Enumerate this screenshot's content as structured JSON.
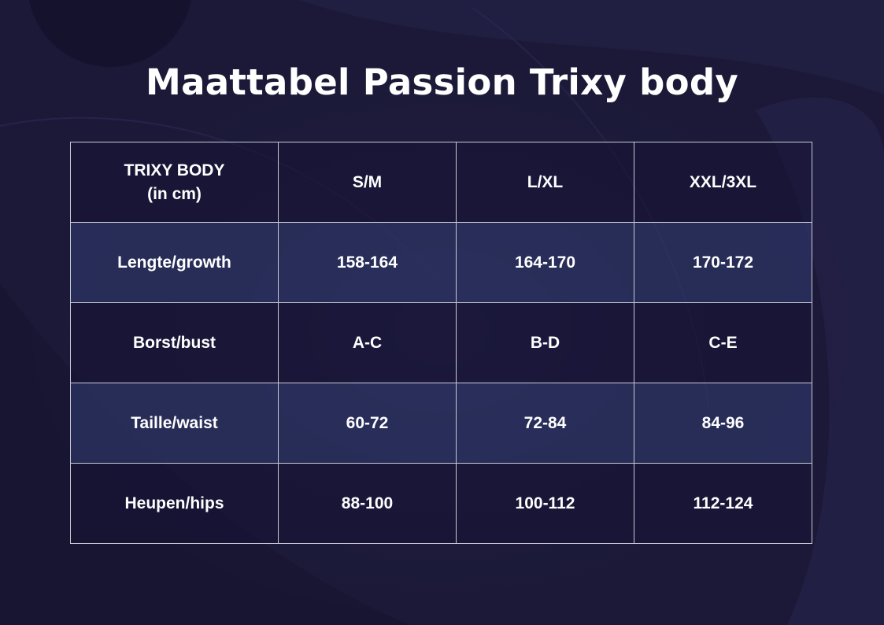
{
  "title": "Maattabel Passion Trixy body",
  "colors": {
    "background": "#1b1837",
    "row_light": "#2a325f",
    "row_dark": "#17143a",
    "grid": "#c9c9d6",
    "text": "#ffffff"
  },
  "table": {
    "header": {
      "label_line1": "TRIXY BODY",
      "label_line2": "(in cm)",
      "sizes": [
        "S/M",
        "L/XL",
        "XXL/3XL"
      ]
    },
    "rows": [
      {
        "label": "Lengte/growth",
        "values": [
          "158-164",
          "164-170",
          "170-172"
        ]
      },
      {
        "label": "Borst/bust",
        "values": [
          "A-C",
          "B-D",
          "C-E"
        ]
      },
      {
        "label": "Taille/waist",
        "values": [
          "60-72",
          "72-84",
          "84-96"
        ]
      },
      {
        "label": "Heupen/hips",
        "values": [
          "88-100",
          "100-112",
          "112-124"
        ]
      }
    ]
  }
}
